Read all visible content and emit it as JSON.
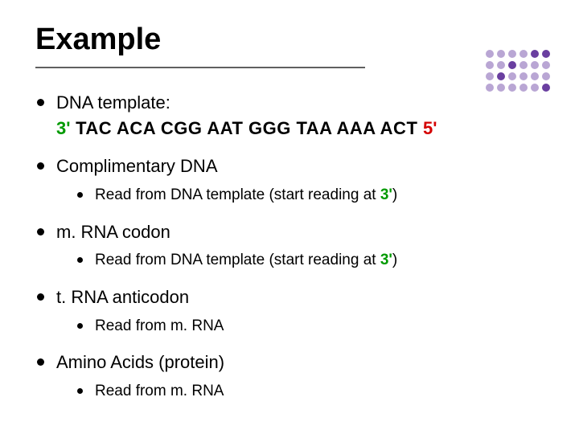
{
  "title": "Example",
  "title_underline_color": "#606060",
  "decoration_dots": {
    "rows": [
      [
        "#b9a6d4",
        "#b9a6d4",
        "#b9a6d4",
        "#b9a6d4",
        "#6a3fa0",
        "#6a3fa0"
      ],
      [
        "#b9a6d4",
        "#b9a6d4",
        "#6a3fa0",
        "#b9a6d4",
        "#b9a6d4",
        "#b9a6d4"
      ],
      [
        "#b9a6d4",
        "#6a3fa0",
        "#b9a6d4",
        "#b9a6d4",
        "#b9a6d4",
        "#b9a6d4"
      ],
      [
        "#b9a6d4",
        "#b9a6d4",
        "#b9a6d4",
        "#b9a6d4",
        "#b9a6d4",
        "#6a3fa0"
      ]
    ]
  },
  "colors": {
    "green": "#009a00",
    "red": "#d40000",
    "text": "#000000",
    "bullet": "#000000"
  },
  "bullets": [
    {
      "label": "DNA template:",
      "seq_prefix": "3'",
      "seq_body": " TAC  ACA  CGG  AAT  GGG  TAA  AAA  ACT ",
      "seq_suffix": "5'",
      "sub": null
    },
    {
      "label": "Complimentary DNA",
      "sub": {
        "pre": "Read from DNA template (start reading at ",
        "hl": "3'",
        "post": ")"
      }
    },
    {
      "label": "m. RNA codon",
      "sub": {
        "pre": "Read from DNA template (start reading at ",
        "hl": "3'",
        "post": ")"
      }
    },
    {
      "label": "t. RNA anticodon",
      "sub": {
        "pre": "Read from m. RNA",
        "hl": null,
        "post": ""
      }
    },
    {
      "label": "Amino Acids (protein)",
      "sub": {
        "pre": "Read from m. RNA",
        "hl": null,
        "post": ""
      }
    }
  ]
}
